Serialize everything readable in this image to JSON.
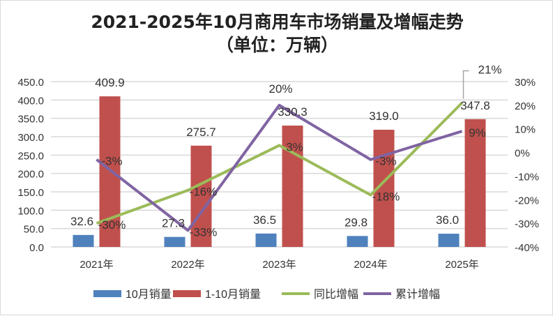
{
  "chart_data": {
    "type": "bar+line",
    "title": "2021-2025年10月商用车市场销量及增幅走势",
    "subtitle": "（单位：万辆）",
    "categories": [
      "2021年",
      "2022年",
      "2023年",
      "2024年",
      "2025年"
    ],
    "left_axis": {
      "min": 0,
      "max": 450,
      "step": 50,
      "ticks": [
        "0.0",
        "50.0",
        "100.0",
        "150.0",
        "200.0",
        "250.0",
        "300.0",
        "350.0",
        "400.0",
        "450.0"
      ]
    },
    "right_axis": {
      "min": -40,
      "max": 30,
      "step": 10,
      "ticks": [
        "-40%",
        "-30%",
        "-20%",
        "-10%",
        "0%",
        "10%",
        "20%",
        "30%"
      ]
    },
    "grid": true,
    "legend_position": "bottom",
    "series": [
      {
        "name": "10月销量",
        "kind": "bar",
        "axis": "left",
        "color": "#4f81bd",
        "values": [
          32.6,
          27.3,
          36.5,
          29.8,
          36.0
        ],
        "labels": [
          "32.6",
          "27.3",
          "36.5",
          "29.8",
          "36.0"
        ]
      },
      {
        "name": "1-10月销量",
        "kind": "bar",
        "axis": "left",
        "color": "#c0504d",
        "values": [
          409.9,
          275.7,
          330.3,
          319.0,
          347.8
        ],
        "labels": [
          "409.9",
          "275.7",
          "330.3",
          "319.0",
          "347.8"
        ]
      },
      {
        "name": "同比增幅",
        "kind": "line",
        "axis": "right",
        "color": "#9bbb59",
        "values": [
          -30,
          -16,
          3,
          -18,
          21
        ],
        "labels": [
          "-30%",
          "-16%",
          "3%",
          "-18%",
          "21%"
        ]
      },
      {
        "name": "累计增幅",
        "kind": "line",
        "axis": "right",
        "color": "#8064a2",
        "values": [
          -3,
          -33,
          20,
          -3,
          9
        ],
        "labels": [
          "-3%",
          "-33%",
          "20%",
          "-3%",
          "9%"
        ]
      }
    ]
  }
}
